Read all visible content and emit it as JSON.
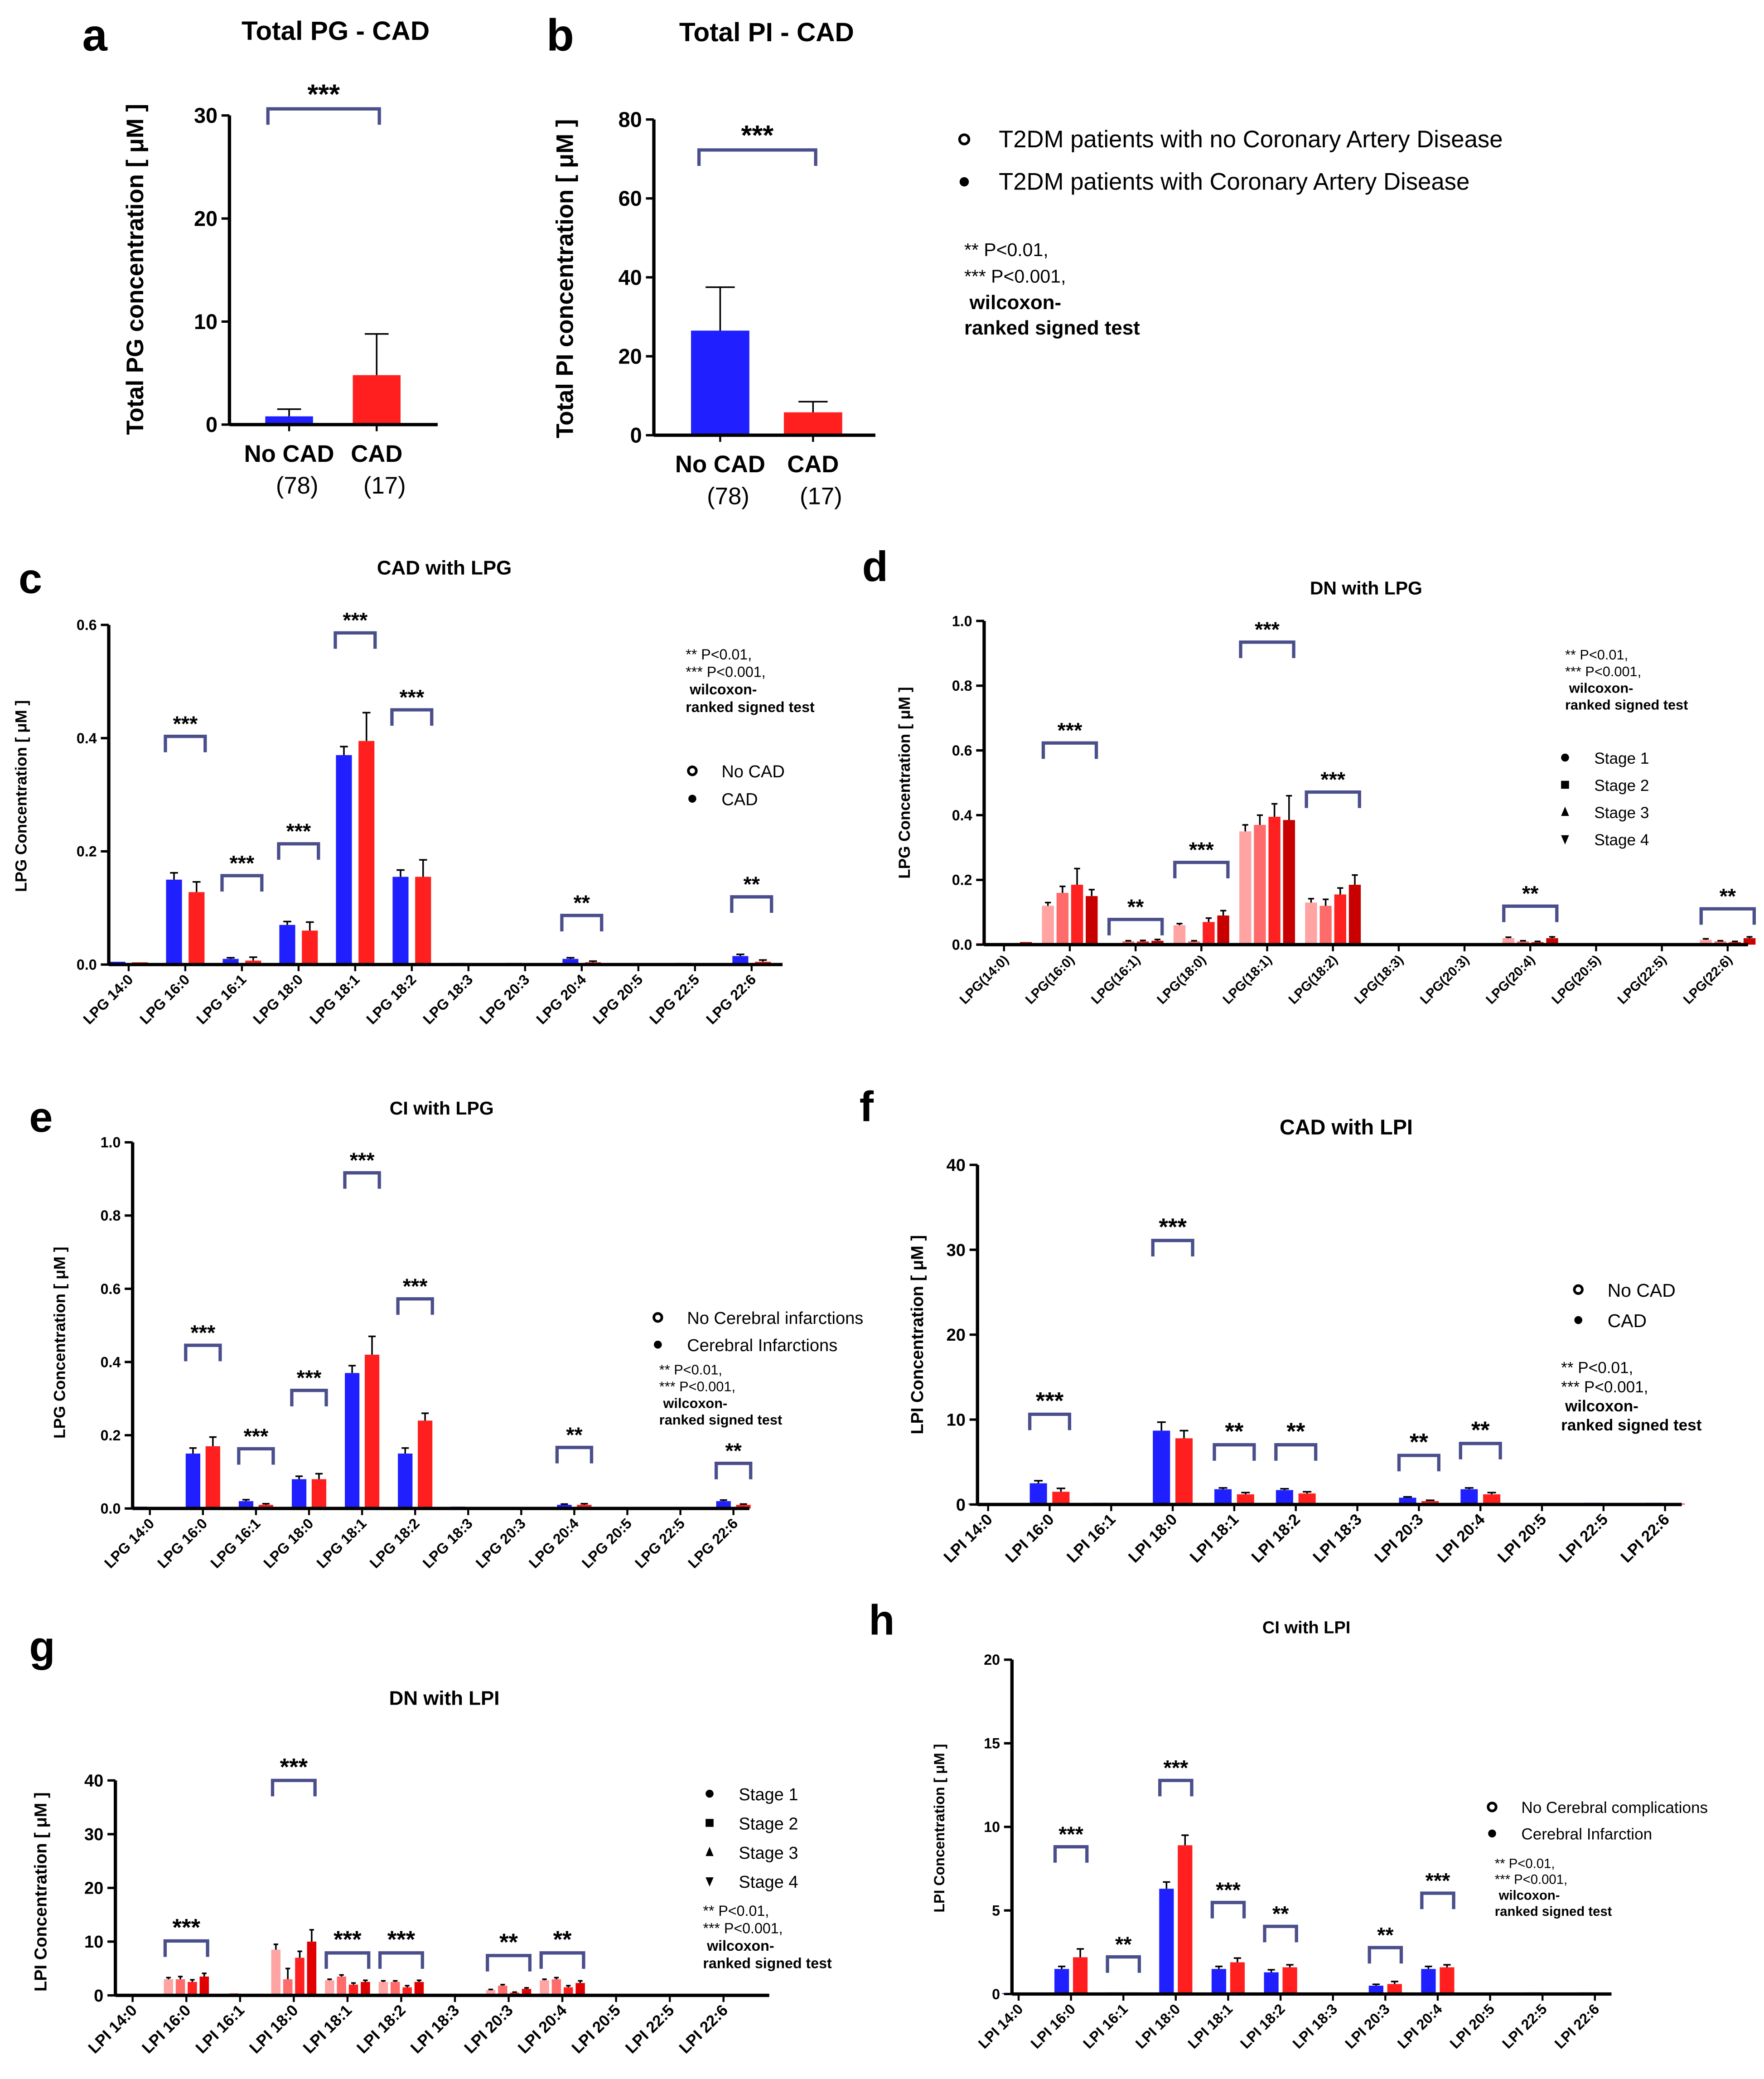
{
  "legend_ab": {
    "entries": [
      {
        "label": "T2DM patients with no Coronary Artery Disease",
        "marker": "open-circle"
      },
      {
        "label": "T2DM patients with Coronary Artery Disease",
        "marker": "filled-circle"
      }
    ],
    "notes": [
      "**  P<0.01,",
      "***  P<0.001,",
      "wilcoxon-",
      "ranked signed test"
    ]
  },
  "chart_data": [
    {
      "id": "a",
      "letter": "a",
      "type": "bar",
      "title": "Total PG - CAD",
      "ylabel": "Total PG concentration [ μM ]",
      "xlabel": "",
      "ylim": [
        0,
        30
      ],
      "yticks": [
        "0",
        "10",
        "20",
        "30"
      ],
      "ytick_values": [
        0,
        10,
        20,
        30
      ],
      "categories": [
        "No CAD",
        "CAD"
      ],
      "n_labels": [
        "(78)",
        "(17)"
      ],
      "series": [
        {
          "name": "Total PG",
          "colors": [
            "#1f1fff",
            "#ff1f1f"
          ],
          "values": [
            0.8,
            4.8
          ],
          "err": [
            0.7,
            4.0
          ]
        }
      ],
      "significance": [
        "***"
      ],
      "significance_span": "No CAD vs CAD"
    },
    {
      "id": "b",
      "letter": "b",
      "type": "bar",
      "title": "Total PI - CAD",
      "ylabel": "Total PI concentration [ μM ]",
      "xlabel": "",
      "ylim": [
        0,
        80
      ],
      "yticks": [
        "0",
        "20",
        "40",
        "60",
        "80"
      ],
      "ytick_values": [
        0,
        20,
        40,
        60,
        80
      ],
      "categories": [
        "No CAD",
        "CAD"
      ],
      "n_labels": [
        "(78)",
        "(17)"
      ],
      "series": [
        {
          "name": "Total PI",
          "colors": [
            "#1f1fff",
            "#ff1f1f"
          ],
          "values": [
            26.5,
            5.8
          ],
          "err": [
            11,
            2.7
          ]
        }
      ],
      "significance": [
        "***"
      ],
      "significance_span": "No CAD vs CAD"
    },
    {
      "id": "c",
      "letter": "c",
      "type": "bar",
      "title": "CAD with LPG",
      "ylabel": "LPG Concentration [ μM ]",
      "xlabel": "",
      "ylim": [
        0,
        0.6
      ],
      "yticks": [
        "0.0",
        "0.2",
        "0.4",
        "0.6"
      ],
      "ytick_values": [
        0,
        0.2,
        0.4,
        0.6
      ],
      "categories": [
        "LPG 14:0",
        "LPG 16:0",
        "LPG 16:1",
        "LPG 18:0",
        "LPG 18:1",
        "LPG 18:2",
        "LPG 18:3",
        "LPG 20:3",
        "LPG 20:4",
        "LPG 20:5",
        "LPG 22:5",
        "LPG 22:6"
      ],
      "series": [
        {
          "name": "No CAD",
          "marker": "open-circle",
          "color": "#1f1fff",
          "values": [
            0.005,
            0.15,
            0.01,
            0.07,
            0.37,
            0.155,
            0.003,
            0.003,
            0.01,
            0.001,
            0.003,
            0.015
          ],
          "err": [
            0,
            0.012,
            0.002,
            0.006,
            0.015,
            0.012,
            0,
            0,
            0.002,
            0,
            0,
            0.003
          ]
        },
        {
          "name": "CAD",
          "marker": "filled-circle",
          "color": "#ff1f1f",
          "values": [
            0.004,
            0.128,
            0.007,
            0.06,
            0.395,
            0.155,
            0.002,
            0.001,
            0.004,
            0.002,
            0.002,
            0.005
          ],
          "err": [
            0,
            0.018,
            0.006,
            0.015,
            0.05,
            0.03,
            0,
            0,
            0.002,
            0,
            0,
            0.003
          ]
        }
      ],
      "significance": [
        "",
        "***",
        "***",
        "***",
        "***",
        "***",
        "",
        "",
        "**",
        "",
        "",
        "**"
      ],
      "legend": [
        "No CAD",
        "CAD"
      ],
      "notes": [
        "**  P<0.01,",
        "***  P<0.001,",
        "wilcoxon-",
        "ranked signed test"
      ]
    },
    {
      "id": "d",
      "letter": "d",
      "type": "bar",
      "title": "DN with LPG",
      "ylabel": "LPG Concentration [ μM ]",
      "xlabel": "",
      "ylim": [
        0,
        1.0
      ],
      "yticks": [
        "0.0",
        "0.2",
        "0.4",
        "0.6",
        "0.8",
        "1.0"
      ],
      "ytick_values": [
        0,
        0.2,
        0.4,
        0.6,
        0.8,
        1.0
      ],
      "categories": [
        "LPG(14:0)",
        "LPG(16:0)",
        "LPG(16:1)",
        "LPG(18:0)",
        "LPG(18:1)",
        "LPG(18:2)",
        "LPG(18:3)",
        "LPG(20:3)",
        "LPG(20:4)",
        "LPG(20:5)",
        "LPG(22:5)",
        "LPG(22:6)"
      ],
      "series": [
        {
          "name": "Stage 1",
          "marker": "filled-circle",
          "color": "#ffa3a3",
          "values": [
            0.005,
            0.12,
            0.005,
            0.06,
            0.35,
            0.13,
            0.003,
            0.002,
            0.02,
            0.002,
            0.002,
            0.015
          ],
          "err": [
            0,
            0.01,
            0,
            0.005,
            0.02,
            0.012,
            0,
            0,
            0.003,
            0,
            0,
            0.003
          ]
        },
        {
          "name": "Stage 2",
          "marker": "filled-square",
          "color": "#ff6b6b",
          "values": [
            0.005,
            0.16,
            0.01,
            0.01,
            0.37,
            0.12,
            0.003,
            0.002,
            0.01,
            0.001,
            0.002,
            0.01
          ],
          "err": [
            0,
            0.02,
            0.002,
            0.002,
            0.03,
            0.02,
            0,
            0,
            0.002,
            0,
            0,
            0.002
          ]
        },
        {
          "name": "Stage 3",
          "marker": "filled-triangle",
          "color": "#ff2020",
          "values": [
            0.003,
            0.185,
            0.01,
            0.07,
            0.395,
            0.155,
            0.002,
            0.002,
            0.008,
            0.001,
            0.001,
            0.008
          ],
          "err": [
            0,
            0.05,
            0.003,
            0.012,
            0.04,
            0.02,
            0,
            0,
            0.002,
            0,
            0,
            0.002
          ]
        },
        {
          "name": "Stage 4",
          "marker": "filled-inverted-triangle",
          "color": "#c80000",
          "values": [
            0.008,
            0.15,
            0.012,
            0.09,
            0.385,
            0.185,
            0.003,
            0.005,
            0.02,
            0.003,
            0.004,
            0.02
          ],
          "err": [
            0,
            0.02,
            0.004,
            0.015,
            0.075,
            0.03,
            0,
            0,
            0.004,
            0,
            0,
            0.004
          ]
        }
      ],
      "significance": [
        "",
        "***",
        "**",
        "***",
        "***",
        "***",
        "",
        "",
        "**",
        "",
        "",
        "**"
      ],
      "legend": [
        "Stage 1",
        "Stage 2",
        "Stage 3",
        "Stage 4"
      ],
      "notes": [
        "**  P<0.01,",
        "***  P<0.001,",
        "wilcoxon-",
        "ranked signed test"
      ]
    },
    {
      "id": "e",
      "letter": "e",
      "type": "bar",
      "title": "CI with LPG",
      "ylabel": "LPG Concentration [ μM ]",
      "xlabel": "",
      "ylim": [
        0,
        1.0
      ],
      "yticks": [
        "0.0",
        "0.2",
        "0.4",
        "0.6",
        "0.8",
        "1.0"
      ],
      "ytick_values": [
        0,
        0.2,
        0.4,
        0.6,
        0.8,
        1.0
      ],
      "categories": [
        "LPG 14:0",
        "LPG 16:0",
        "LPG 16:1",
        "LPG 18:0",
        "LPG 18:1",
        "LPG 18:2",
        "LPG 18:3",
        "LPG 20:3",
        "LPG 20:4",
        "LPG 20:5",
        "LPG 22:5",
        "LPG 22:6"
      ],
      "series": [
        {
          "name": "No Cerebral infarctions",
          "marker": "open-circle",
          "color": "#1f1fff",
          "values": [
            0.005,
            0.15,
            0.02,
            0.08,
            0.37,
            0.15,
            0.005,
            0.003,
            0.01,
            0.002,
            0.003,
            0.02
          ],
          "err": [
            0,
            0.015,
            0.004,
            0.008,
            0.02,
            0.015,
            0,
            0,
            0.002,
            0,
            0,
            0.003
          ]
        },
        {
          "name": "Cerebral Infarctions",
          "marker": "filled-circle",
          "color": "#ff1f1f",
          "values": [
            0.003,
            0.17,
            0.01,
            0.08,
            0.42,
            0.24,
            0.003,
            0.002,
            0.01,
            0.001,
            0.002,
            0.01
          ],
          "err": [
            0,
            0.025,
            0.003,
            0.015,
            0.05,
            0.02,
            0,
            0,
            0.003,
            0,
            0,
            0.002
          ]
        }
      ],
      "significance": [
        "",
        "***",
        "***",
        "***",
        "***",
        "***",
        "",
        "",
        "**",
        "",
        "",
        "**"
      ],
      "legend": [
        "No Cerebral infarctions",
        "Cerebral Infarctions"
      ],
      "notes": [
        "**  P<0.01,",
        "***  P<0.001,",
        "wilcoxon-",
        "ranked signed test"
      ]
    },
    {
      "id": "f",
      "letter": "f",
      "type": "bar",
      "title": "CAD with LPI",
      "ylabel": "LPI Concentration [ μM ]",
      "xlabel": "",
      "ylim": [
        0,
        40
      ],
      "yticks": [
        "0",
        "10",
        "20",
        "30",
        "40"
      ],
      "ytick_values": [
        0,
        10,
        20,
        30,
        40
      ],
      "categories": [
        "LPI 14:0",
        "LPI 16:0",
        "LPI 16:1",
        "LPI 18:0",
        "LPI 18:1",
        "LPI 18:2",
        "LPI 18:3",
        "LPI 20:3",
        "LPI 20:4",
        "LPI 20:5",
        "LPI 22:5",
        "LPI 22:6"
      ],
      "series": [
        {
          "name": "No CAD",
          "marker": "open-circle",
          "color": "#1f1fff",
          "values": [
            0.1,
            2.5,
            0.2,
            8.7,
            1.8,
            1.7,
            0.1,
            0.8,
            1.8,
            0.1,
            0.2,
            0.2
          ],
          "err": [
            0,
            0.3,
            0,
            1.0,
            0.15,
            0.15,
            0,
            0.1,
            0.15,
            0,
            0,
            0
          ]
        },
        {
          "name": "CAD",
          "marker": "filled-circle",
          "color": "#ff1f1f",
          "values": [
            0.1,
            1.5,
            0.1,
            7.8,
            1.2,
            1.3,
            0.1,
            0.4,
            1.2,
            0.1,
            0.1,
            0.1
          ],
          "err": [
            0,
            0.4,
            0,
            0.9,
            0.2,
            0.2,
            0,
            0.1,
            0.2,
            0,
            0,
            0
          ]
        }
      ],
      "significance": [
        "",
        "***",
        "",
        "***",
        "**",
        "**",
        "",
        "**",
        "**",
        "",
        "",
        ""
      ],
      "legend": [
        "No CAD",
        "CAD"
      ],
      "notes": [
        "**  P<0.01,",
        "***  P<0.001,",
        "wilcoxon-",
        "ranked signed test"
      ]
    },
    {
      "id": "g",
      "letter": "g",
      "type": "bar",
      "title": "DN with LPI",
      "ylabel": "LPI Concentration [ μM ]",
      "xlabel": "",
      "ylim": [
        0,
        40
      ],
      "yticks": [
        "0",
        "10",
        "20",
        "30",
        "40"
      ],
      "ytick_values": [
        0,
        10,
        20,
        30,
        40
      ],
      "categories": [
        "LPI 14:0",
        "LPI 16:0",
        "LPI 16:1",
        "LPI 18:0",
        "LPI 18:1",
        "LPI 18:2",
        "LPI 18:3",
        "LPI 20:3",
        "LPI 20:4",
        "LPI 20:5",
        "LPI 22:5",
        "LPI 22:6"
      ],
      "series": [
        {
          "name": "Stage 1",
          "marker": "filled-circle",
          "color": "#ffa3a3",
          "values": [
            0.1,
            3,
            0.3,
            8.5,
            2.8,
            2.5,
            0.1,
            1,
            2.8,
            0.1,
            0.1,
            0.1
          ],
          "err": [
            0,
            0.3,
            0,
            1,
            0.2,
            0.2,
            0,
            0.1,
            0.2,
            0,
            0,
            0
          ]
        },
        {
          "name": "Stage 2",
          "marker": "filled-square",
          "color": "#ff6b6b",
          "values": [
            0.2,
            3,
            0.4,
            3,
            3.5,
            2.5,
            0.2,
            1.8,
            3,
            0.2,
            0.2,
            0.2
          ],
          "err": [
            0,
            0.5,
            0,
            2,
            0.3,
            0.2,
            0,
            0.2,
            0.3,
            0,
            0,
            0
          ]
        },
        {
          "name": "Stage 3",
          "marker": "filled-triangle",
          "color": "#ff2020",
          "values": [
            0.1,
            2.5,
            0.2,
            7,
            2,
            1.5,
            0.1,
            0.5,
            1.5,
            0.1,
            0.1,
            0.1
          ],
          "err": [
            0,
            0.4,
            0,
            1.2,
            0.3,
            0.3,
            0,
            0.1,
            0.3,
            0,
            0,
            0
          ]
        },
        {
          "name": "Stage 4",
          "marker": "filled-inverted-triangle",
          "color": "#e00000",
          "values": [
            0.2,
            3.5,
            0.3,
            10,
            2.5,
            2.5,
            0.1,
            1.2,
            2.3,
            0.1,
            0.1,
            0.1
          ],
          "err": [
            0,
            0.6,
            0,
            2.2,
            0.3,
            0.3,
            0,
            0.2,
            0.4,
            0,
            0,
            0
          ]
        }
      ],
      "significance": [
        "",
        "***",
        "",
        "***",
        "***",
        "***",
        "",
        "**",
        "**",
        "",
        "",
        ""
      ],
      "legend": [
        "Stage 1",
        "Stage 2",
        "Stage 3",
        "Stage 4"
      ],
      "notes": [
        "**  P<0.01,",
        "***  P<0.001,",
        "wilcoxon-",
        "ranked signed test"
      ]
    },
    {
      "id": "h",
      "letter": "h",
      "type": "bar",
      "title": "CI with LPI",
      "ylabel": "LPI Concentration [ μM ]",
      "xlabel": "",
      "ylim": [
        0,
        20
      ],
      "yticks": [
        "0",
        "5",
        "10",
        "15",
        "20"
      ],
      "ytick_values": [
        0,
        5,
        10,
        15,
        20
      ],
      "categories": [
        "LPI 14:0",
        "LPI 16:0",
        "LPI 16:1",
        "LPI 18:0",
        "LPI 18:1",
        "LPI 18:2",
        "LPI 18:3",
        "LPI 20:3",
        "LPI 20:4",
        "LPI 20:5",
        "LPI 22:5",
        "LPI 22:6"
      ],
      "series": [
        {
          "name": "No Cerebral complications",
          "marker": "open-circle",
          "color": "#1f1fff",
          "values": [
            0.05,
            1.5,
            0.1,
            6.3,
            1.5,
            1.3,
            0.05,
            0.5,
            1.5,
            0.05,
            0.1,
            0.1
          ],
          "err": [
            0,
            0.15,
            0,
            0.4,
            0.15,
            0.15,
            0,
            0.08,
            0.15,
            0,
            0,
            0
          ]
        },
        {
          "name": "Cerebral Infarction",
          "marker": "filled-circle",
          "color": "#ff1f1f",
          "values": [
            0.05,
            2.2,
            0.1,
            8.9,
            1.9,
            1.6,
            0.05,
            0.6,
            1.6,
            0.05,
            0.05,
            0.05
          ],
          "err": [
            0,
            0.5,
            0,
            0.6,
            0.25,
            0.15,
            0,
            0.15,
            0.15,
            0,
            0,
            0
          ]
        }
      ],
      "significance": [
        "",
        "***",
        "**",
        "***",
        "***",
        "**",
        "",
        "**",
        "***",
        "",
        "",
        ""
      ],
      "legend": [
        "No Cerebral complications",
        "Cerebral Infarction"
      ],
      "notes": [
        "**  P<0.01,",
        "***  P<0.001,",
        "wilcoxon-",
        "ranked signed test"
      ]
    }
  ]
}
